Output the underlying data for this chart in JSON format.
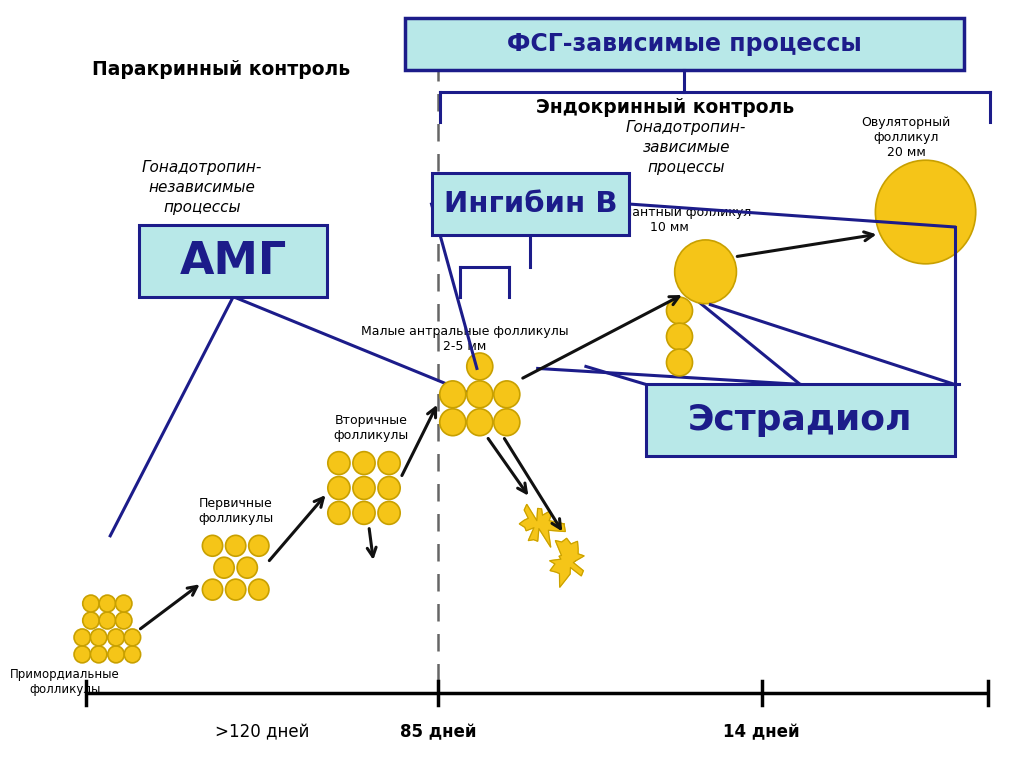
{
  "bg_color": "#ffffff",
  "title_fsg": "ФСГ-зависимые процессы",
  "title_paracrine": "Паракринный контроль",
  "title_endocrine": "Эндокринный контроль",
  "label_gonadotropin_indep": "Гонадотропин-\nнезависимые\nпроцессы",
  "label_gonadotropin_dep": "Гонадотропин-\nзависимые\nпроцессы",
  "label_amg": "АМГ",
  "label_inhibin": "Ингибин В",
  "label_estradiol": "Эстрадиол",
  "label_primordial": "Примордиальные\nфолликулы",
  "label_primary": "Первичные\nфолликулы",
  "label_secondary": "Вторичные\nфолликулы",
  "label_small_antral": "Малые антральные фолликулы\n2-5 мм",
  "label_dominant": "Доминантный фолликул\n10 мм",
  "label_ovulatory": "Овуляторный\nфолликул\n20 мм",
  "time_120": ">120 дней",
  "time_85": "85 дней",
  "time_14": "14 дней",
  "cyan_box_color": "#b8e8e8",
  "dark_blue": "#1c1c8a",
  "gold": "#F5C518",
  "gold_dark": "#C8A000",
  "arrow_color": "#111111",
  "bracket_color": "#1c1c8a"
}
